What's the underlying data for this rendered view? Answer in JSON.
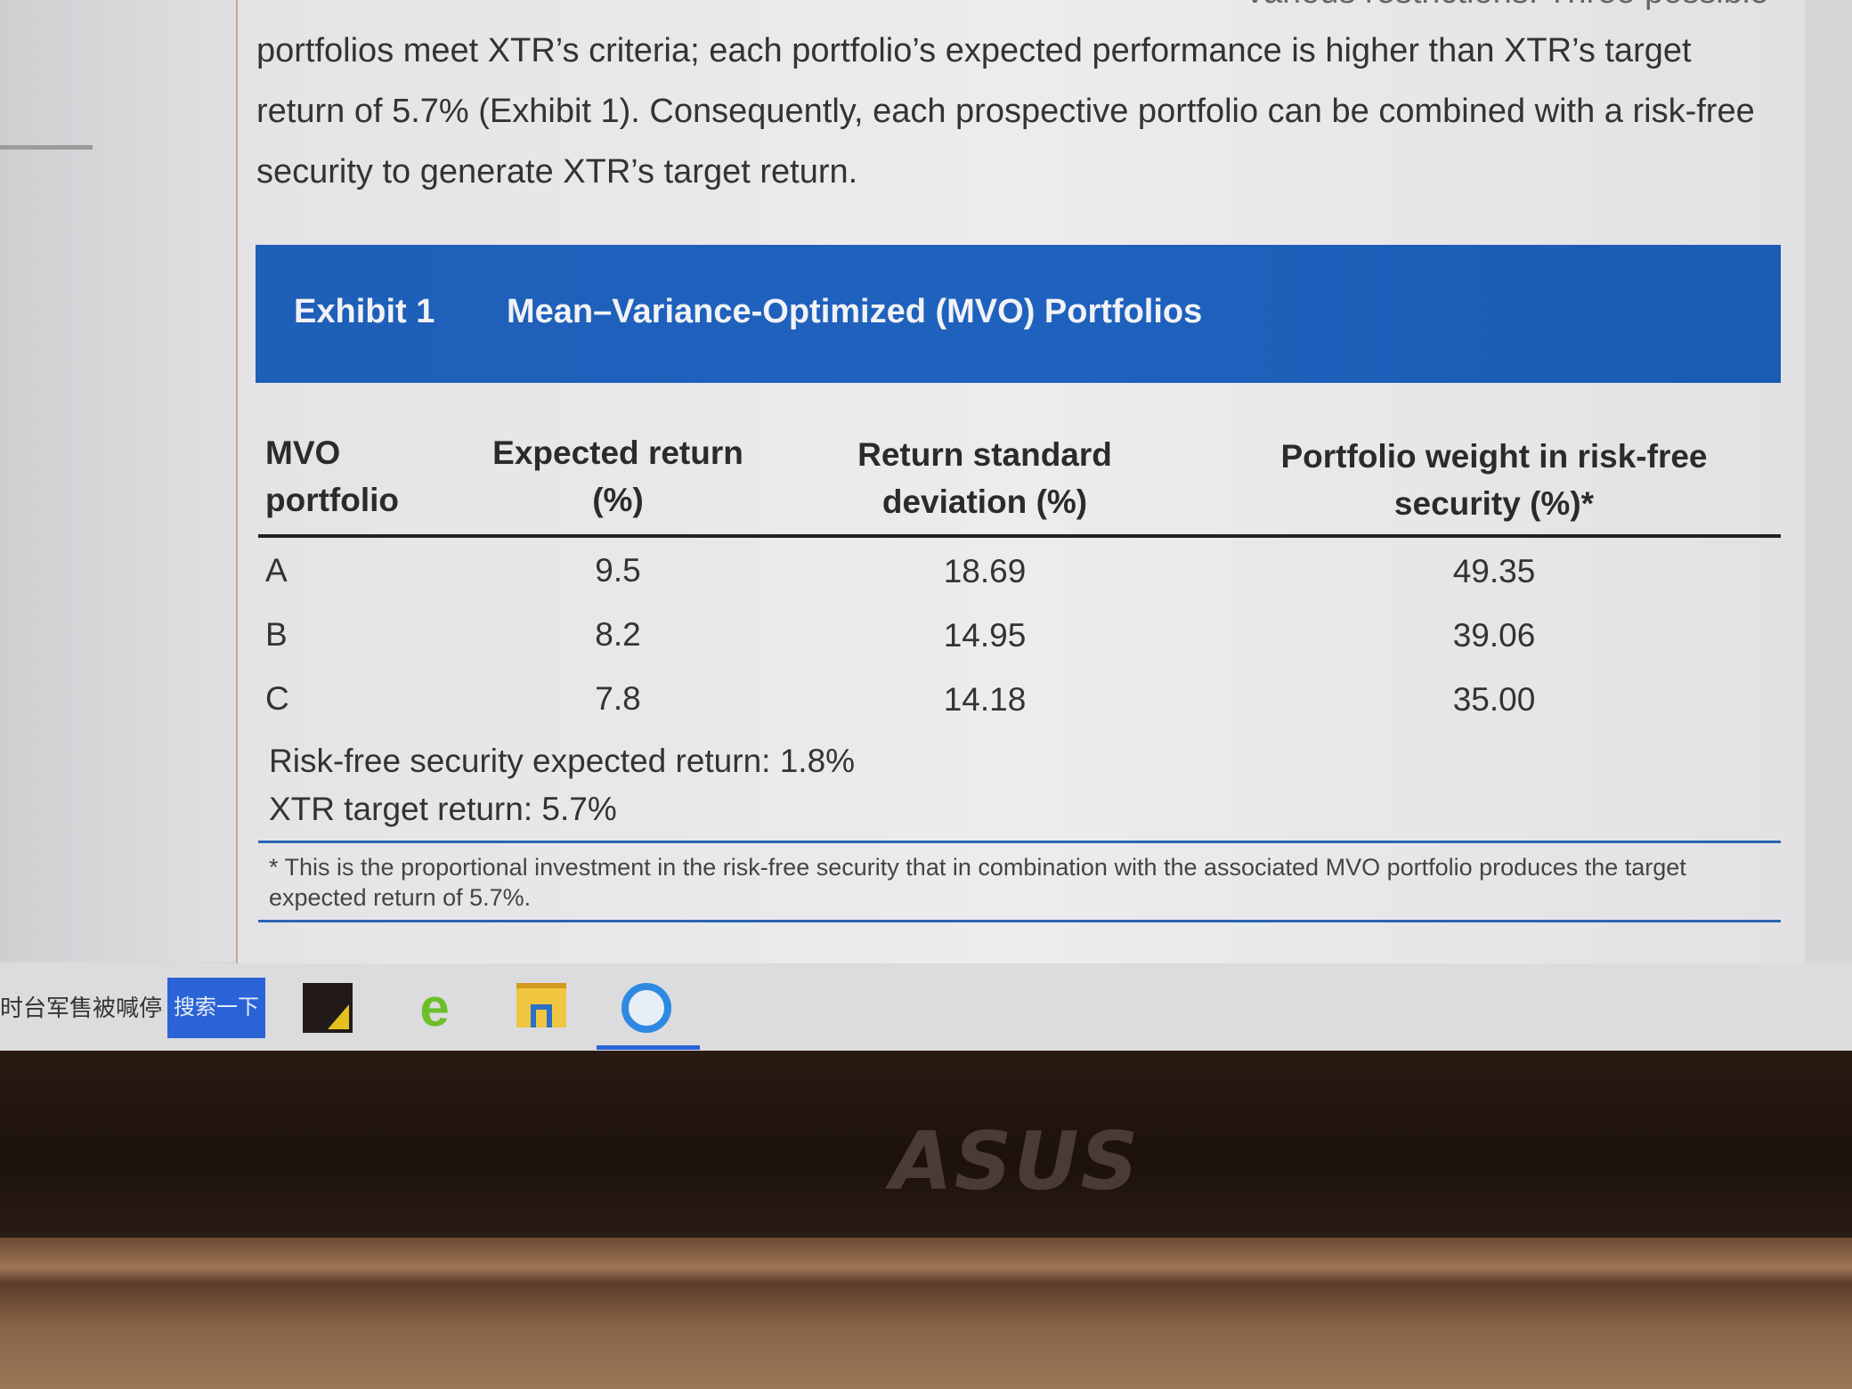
{
  "document": {
    "paragraph_lines": [
      "various restrictions. Three possible",
      "portfolios meet XTR’s criteria; each portfolio’s expected performance is higher than XTR’s target",
      "return of 5.7% (Exhibit 1). Consequently, each prospective portfolio can be combined with a risk-free",
      "security to generate XTR’s target return."
    ],
    "exhibit": {
      "label": "Exhibit 1",
      "title": "Mean–Variance-Optimized (MVO) Portfolios",
      "headers": [
        [
          "MVO",
          "portfolio"
        ],
        [
          "Expected return",
          "(%)"
        ],
        [
          "Return standard",
          "deviation (%)"
        ],
        [
          "Portfolio weight in risk-free",
          "security (%)*"
        ]
      ],
      "rows": [
        [
          "A",
          "9.5",
          "18.69",
          "49.35"
        ],
        [
          "B",
          "8.2",
          "14.95",
          "39.06"
        ],
        [
          "C",
          "7.8",
          "14.18",
          "35.00"
        ]
      ],
      "notes": [
        "Risk-free security expected return: 1.8%",
        "XTR target return: 5.7%"
      ],
      "footnote": "* This is the proportional investment in the risk-free security that in combination with the associated MVO portfolio produces the target expected return of 5.7%.",
      "banner_color": "#1e5fb8"
    }
  },
  "taskbar": {
    "news_text": "时台军售被喊停",
    "search_button": "搜索一下",
    "icons": [
      "sticky-notes-icon",
      "internet-explorer-icon",
      "file-explorer-icon",
      "browser-icon"
    ]
  },
  "bezel": {
    "brand": "ASUS"
  }
}
